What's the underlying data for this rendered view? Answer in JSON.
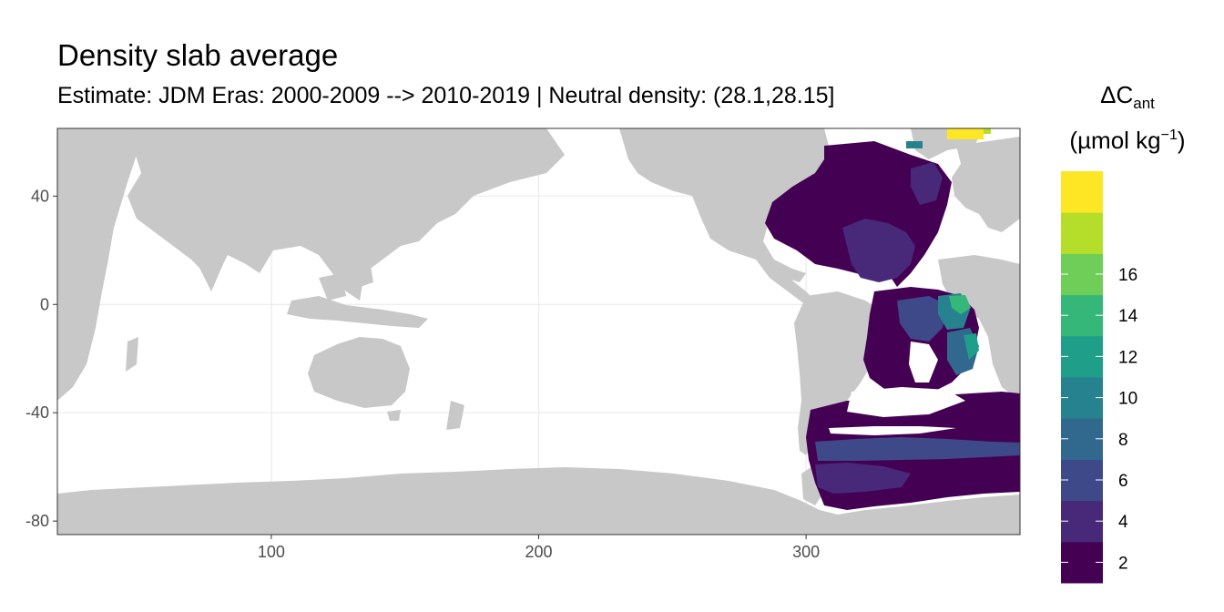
{
  "title": "Density slab average",
  "subtitle": "Estimate: JDM Eras: 2000-2009 --> 2010-2019 | Neutral density: (28.1,28.15]",
  "colors": {
    "land": "#c8c8c8",
    "ocean_bg": "#ffffff",
    "grid": "#ebebeb",
    "scale": [
      "#440154",
      "#482878",
      "#3e4989",
      "#31688e",
      "#26828e",
      "#1f9e89",
      "#35b779",
      "#6ece58",
      "#b5de2b",
      "#fde725"
    ]
  },
  "chart_data": {
    "type": "heatmap",
    "title": "Density slab average",
    "subtitle": "Estimate: JDM Eras: 2000-2009 --> 2010-2019 | Neutral density: (28.1,28.15]",
    "xlabel": "",
    "ylabel": "",
    "xlim": [
      20,
      380
    ],
    "ylim": [
      -85,
      65
    ],
    "x_ticks": [
      100,
      200,
      300
    ],
    "y_ticks": [
      40,
      0,
      -40,
      -80
    ],
    "grid": true,
    "legend": {
      "title_main": "ΔC",
      "title_sub": "ant",
      "title_unit": "(µmol kg",
      "title_sup": "−1",
      "title_close": ")",
      "placement": "right",
      "breaks": [
        2,
        4,
        6,
        8,
        10,
        12,
        14,
        16
      ],
      "bins": 10
    }
  }
}
